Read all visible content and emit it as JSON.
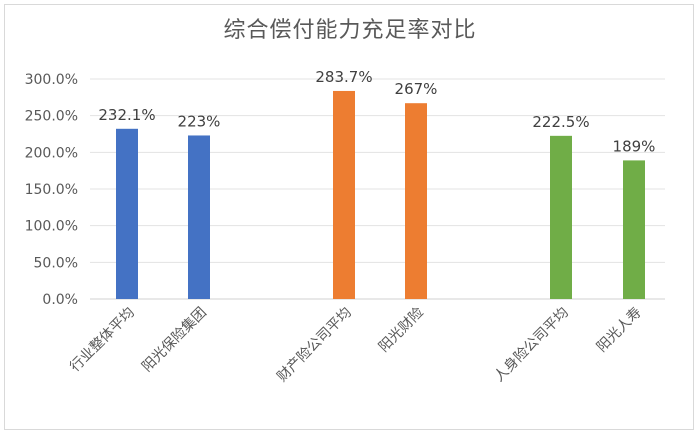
{
  "chart_data": {
    "type": "bar",
    "title": "综合偿付能力充足率对比",
    "xlabel": "",
    "ylabel": "",
    "ylim": [
      0,
      300
    ],
    "yticks": [
      0,
      50,
      100,
      150,
      200,
      250,
      300
    ],
    "ytick_labels": [
      "0.0%",
      "50.0%",
      "100.0%",
      "150.0%",
      "200.0%",
      "250.0%",
      "300.0%"
    ],
    "grid": true,
    "legend": "none",
    "groups": [
      {
        "color": "#4472c4",
        "bars": [
          {
            "category": "行业整体平均",
            "value": 232.1,
            "label": "232.1%"
          },
          {
            "category": "阳光保险集团",
            "value": 223,
            "label": "223%"
          }
        ]
      },
      {
        "color": "#ed7d31",
        "bars": [
          {
            "category": "财产险公司平均",
            "value": 283.7,
            "label": "283.7%"
          },
          {
            "category": "阳光财险",
            "value": 267,
            "label": "267%"
          }
        ]
      },
      {
        "color": "#70ad47",
        "bars": [
          {
            "category": "人身险公司平均",
            "value": 222.5,
            "label": "222.5%"
          },
          {
            "category": "阳光人寿",
            "value": 189,
            "label": "189%"
          }
        ]
      }
    ]
  }
}
